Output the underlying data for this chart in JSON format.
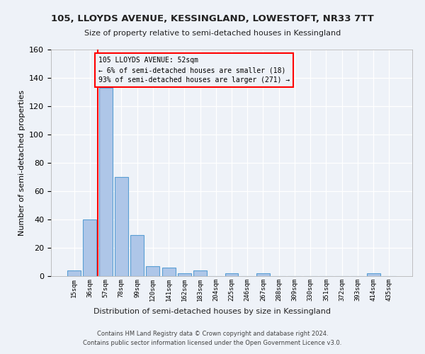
{
  "title": "105, LLOYDS AVENUE, KESSINGLAND, LOWESTOFT, NR33 7TT",
  "subtitle": "Size of property relative to semi-detached houses in Kessingland",
  "xlabel": "Distribution of semi-detached houses by size in Kessingland",
  "ylabel": "Number of semi-detached properties",
  "bin_labels": [
    "15sqm",
    "36sqm",
    "57sqm",
    "78sqm",
    "99sqm",
    "120sqm",
    "141sqm",
    "162sqm",
    "183sqm",
    "204sqm",
    "225sqm",
    "246sqm",
    "267sqm",
    "288sqm",
    "309sqm",
    "330sqm",
    "351sqm",
    "372sqm",
    "393sqm",
    "414sqm",
    "435sqm"
  ],
  "bin_values": [
    4,
    40,
    133,
    70,
    29,
    7,
    6,
    2,
    4,
    0,
    2,
    0,
    2,
    0,
    0,
    0,
    0,
    0,
    0,
    2,
    0
  ],
  "bar_color": "#aec6e8",
  "bar_edgecolor": "#5a9fd4",
  "annotation_text": "105 LLOYDS AVENUE: 52sqm\n← 6% of semi-detached houses are smaller (18)\n93% of semi-detached houses are larger (271) →",
  "annotation_box_edgecolor": "red",
  "highlight_line_color": "red",
  "ylim": [
    0,
    160
  ],
  "yticks": [
    0,
    20,
    40,
    60,
    80,
    100,
    120,
    140,
    160
  ],
  "footer": "Contains HM Land Registry data © Crown copyright and database right 2024.\nContains public sector information licensed under the Open Government Licence v3.0.",
  "bg_color": "#eef2f8",
  "grid_color": "#ffffff"
}
